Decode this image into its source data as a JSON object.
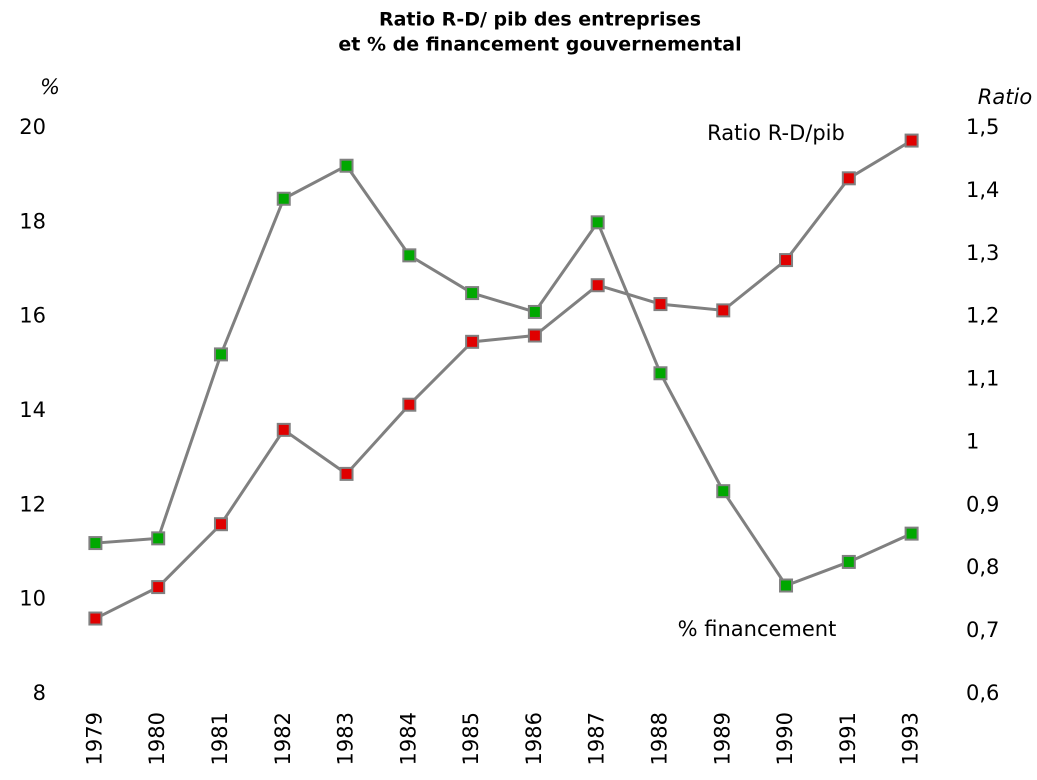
{
  "chart_data": {
    "type": "line",
    "title": [
      "Ratio R-D/ pib des entreprises",
      "et % de financement gouvernemental"
    ],
    "y_label": "%",
    "y2_label": "Ratio",
    "categories": [
      "1979",
      "1980",
      "1981",
      "1982",
      "1983",
      "1984",
      "1985",
      "1986",
      "1987",
      "1988",
      "1989",
      "1990",
      "1991",
      "1993"
    ],
    "series": [
      {
        "name": "% financement",
        "color": "#00a800",
        "axis": "y",
        "values": [
          11.2,
          11.3,
          15.2,
          18.5,
          19.2,
          17.3,
          16.5,
          16.1,
          18.0,
          14.8,
          12.3,
          10.3,
          10.8,
          11.4
        ]
      },
      {
        "name": "Ratio R-D/pib",
        "color": "#e00000",
        "axis": "y2",
        "values": [
          0.72,
          0.77,
          0.87,
          1.02,
          0.95,
          1.06,
          1.16,
          1.17,
          1.25,
          1.22,
          1.21,
          1.29,
          1.42,
          1.48
        ]
      }
    ],
    "line_color": "#808080",
    "ylim": [
      8,
      20
    ],
    "yticks": [
      8,
      10,
      12,
      14,
      16,
      18,
      20
    ],
    "y2lim": [
      0.6,
      1.5
    ],
    "y2ticks": [
      {
        "value": 0.6,
        "label": "0,6"
      },
      {
        "value": 0.7,
        "label": "0,7"
      },
      {
        "value": 0.8,
        "label": "0,8"
      },
      {
        "value": 0.9,
        "label": "0,9"
      },
      1,
      {
        "value": 1.1,
        "label": "1,1"
      },
      {
        "value": 1.2,
        "label": "1,2"
      },
      {
        "value": 1.3,
        "label": "1,3"
      },
      {
        "value": 1.4,
        "label": "1,4"
      },
      {
        "value": 1.5,
        "label": "1,5"
      }
    ],
    "grid": false
  }
}
